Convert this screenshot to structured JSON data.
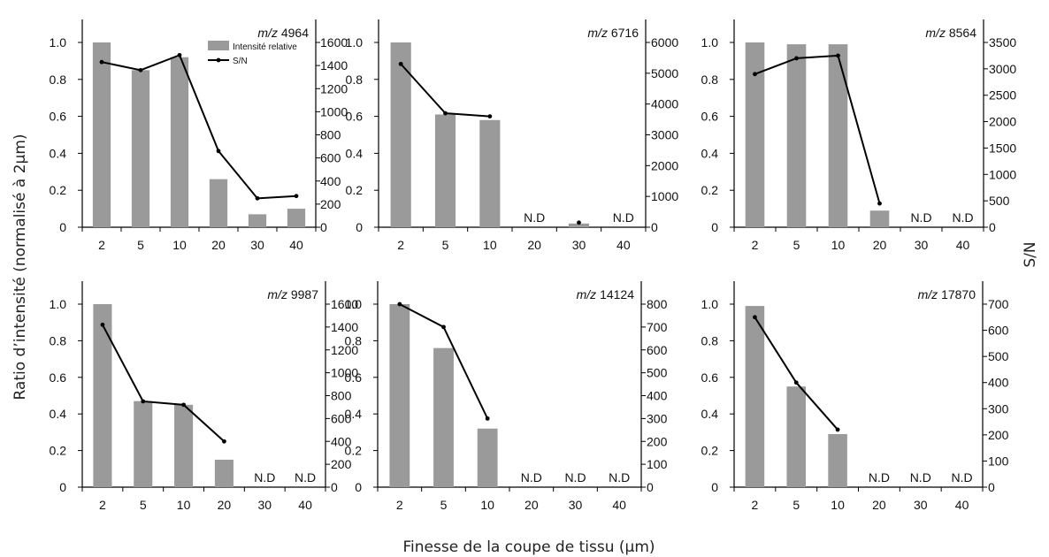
{
  "ylabel_left": "Ratio d’intensité (normalisé à 2µm)",
  "ylabel_right": "S/N",
  "xlabel": "Finesse de la coupe de tissu (µm)",
  "legend": {
    "bar": "Intensité relative",
    "line": "S/N"
  },
  "colors": {
    "bar": "#9a9a9a",
    "line": "#000000",
    "axis": "#000000"
  },
  "nd_label": "N.D",
  "chart_data": [
    {
      "type": "bar+line",
      "title_prefix": "m/z",
      "title_number": "4964",
      "categories": [
        "2",
        "5",
        "10",
        "20",
        "30",
        "40"
      ],
      "series": [
        {
          "name": "Intensité relative",
          "axis": "left",
          "values": [
            1.0,
            0.85,
            0.92,
            0.26,
            0.07,
            0.1
          ]
        },
        {
          "name": "S/N",
          "axis": "right",
          "values": [
            1430,
            1360,
            1490,
            660,
            250,
            270
          ]
        }
      ],
      "not_detected": [],
      "ylim_left": [
        0,
        1.0
      ],
      "yticks_left": [
        0,
        0.2,
        0.4,
        0.6,
        0.8,
        1.0
      ],
      "ylim_right": [
        0,
        1600
      ],
      "yticks_right": [
        0,
        200,
        400,
        600,
        800,
        1000,
        1200,
        1400,
        1600
      ]
    },
    {
      "type": "bar+line",
      "title_prefix": "m/z",
      "title_number": "6716",
      "categories": [
        "2",
        "5",
        "10",
        "20",
        "30",
        "40"
      ],
      "series": [
        {
          "name": "Intensité relative",
          "axis": "left",
          "values": [
            1.0,
            0.61,
            0.58,
            null,
            0.02,
            null
          ]
        },
        {
          "name": "S/N",
          "axis": "right",
          "values": [
            5300,
            3700,
            3600,
            null,
            150,
            null
          ]
        }
      ],
      "not_detected": [
        "20",
        "40"
      ],
      "ylim_left": [
        0,
        1.0
      ],
      "yticks_left": [
        0,
        0.2,
        0.4,
        0.6,
        0.8,
        1.0
      ],
      "ylim_right": [
        0,
        6000
      ],
      "yticks_right": [
        0,
        1000,
        2000,
        3000,
        4000,
        5000,
        6000
      ]
    },
    {
      "type": "bar+line",
      "title_prefix": "m/z",
      "title_number": "8564",
      "categories": [
        "2",
        "5",
        "10",
        "20",
        "30",
        "40"
      ],
      "series": [
        {
          "name": "Intensité relative",
          "axis": "left",
          "values": [
            1.0,
            0.99,
            0.99,
            0.09,
            null,
            null
          ]
        },
        {
          "name": "S/N",
          "axis": "right",
          "values": [
            2900,
            3200,
            3250,
            450,
            null,
            null
          ]
        }
      ],
      "not_detected": [
        "30",
        "40"
      ],
      "ylim_left": [
        0,
        1.0
      ],
      "yticks_left": [
        0,
        0.2,
        0.4,
        0.6,
        0.8,
        1.0
      ],
      "ylim_right": [
        0,
        3500
      ],
      "yticks_right": [
        0,
        500,
        1000,
        1500,
        2000,
        2500,
        3000,
        3500
      ]
    },
    {
      "type": "bar+line",
      "title_prefix": "m/z",
      "title_number": "9987",
      "categories": [
        "2",
        "5",
        "10",
        "20",
        "30",
        "40"
      ],
      "series": [
        {
          "name": "Intensité relative",
          "axis": "left",
          "values": [
            1.0,
            0.47,
            0.45,
            0.15,
            null,
            null
          ]
        },
        {
          "name": "S/N",
          "axis": "right",
          "values": [
            1420,
            750,
            720,
            400,
            null,
            null
          ]
        }
      ],
      "not_detected": [
        "30",
        "40"
      ],
      "ylim_left": [
        0,
        1.0
      ],
      "yticks_left": [
        0,
        0.2,
        0.4,
        0.6,
        0.8,
        1.0
      ],
      "ylim_right": [
        0,
        1600
      ],
      "yticks_right": [
        0,
        200,
        400,
        600,
        800,
        1000,
        1200,
        1400,
        1600
      ]
    },
    {
      "type": "bar+line",
      "title_prefix": "m/z",
      "title_number": "14124",
      "categories": [
        "2",
        "5",
        "10",
        "20",
        "30",
        "40"
      ],
      "series": [
        {
          "name": "Intensité relative",
          "axis": "left",
          "values": [
            1.0,
            0.76,
            0.32,
            null,
            null,
            null
          ]
        },
        {
          "name": "S/N",
          "axis": "right",
          "values": [
            800,
            700,
            300,
            null,
            null,
            null
          ]
        }
      ],
      "not_detected": [
        "20",
        "30",
        "40"
      ],
      "ylim_left": [
        0,
        1.0
      ],
      "yticks_left": [
        0,
        0.2,
        0.4,
        0.6,
        0.8,
        1.0
      ],
      "ylim_right": [
        0,
        800
      ],
      "yticks_right": [
        0,
        100,
        200,
        300,
        400,
        500,
        600,
        700,
        800
      ]
    },
    {
      "type": "bar+line",
      "title_prefix": "m/z",
      "title_number": "17870",
      "categories": [
        "2",
        "5",
        "10",
        "20",
        "30",
        "40"
      ],
      "series": [
        {
          "name": "Intensité relative",
          "axis": "left",
          "values": [
            0.99,
            0.55,
            0.29,
            null,
            null,
            null
          ]
        },
        {
          "name": "S/N",
          "axis": "right",
          "values": [
            650,
            400,
            220,
            null,
            null,
            null
          ]
        }
      ],
      "not_detected": [
        "20",
        "30",
        "40"
      ],
      "ylim_left": [
        0,
        1.0
      ],
      "yticks_left": [
        0,
        0.2,
        0.4,
        0.6,
        0.8,
        1.0
      ],
      "ylim_right": [
        0,
        700
      ],
      "yticks_right": [
        0,
        100,
        200,
        300,
        400,
        500,
        600,
        700
      ]
    }
  ]
}
